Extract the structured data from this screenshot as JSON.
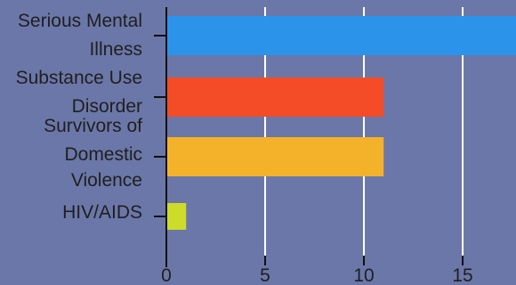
{
  "chart_data": {
    "type": "bar",
    "orientation": "horizontal",
    "categories": [
      [
        "Serious Mental",
        "Illness"
      ],
      [
        "Substance Use",
        "Disorder"
      ],
      [
        "Survivors of",
        "Domestic",
        "Violence"
      ],
      [
        "HIV/AIDS"
      ]
    ],
    "values": [
      18,
      11,
      11,
      1
    ],
    "colors": [
      "#2b93ea",
      "#f44c27",
      "#f4b22b",
      "#cddb2a"
    ],
    "x_ticks": [
      0,
      5,
      10,
      15
    ],
    "xlim": [
      0,
      17.7
    ],
    "grid": true,
    "title": "",
    "xlabel": "",
    "ylabel": ""
  }
}
